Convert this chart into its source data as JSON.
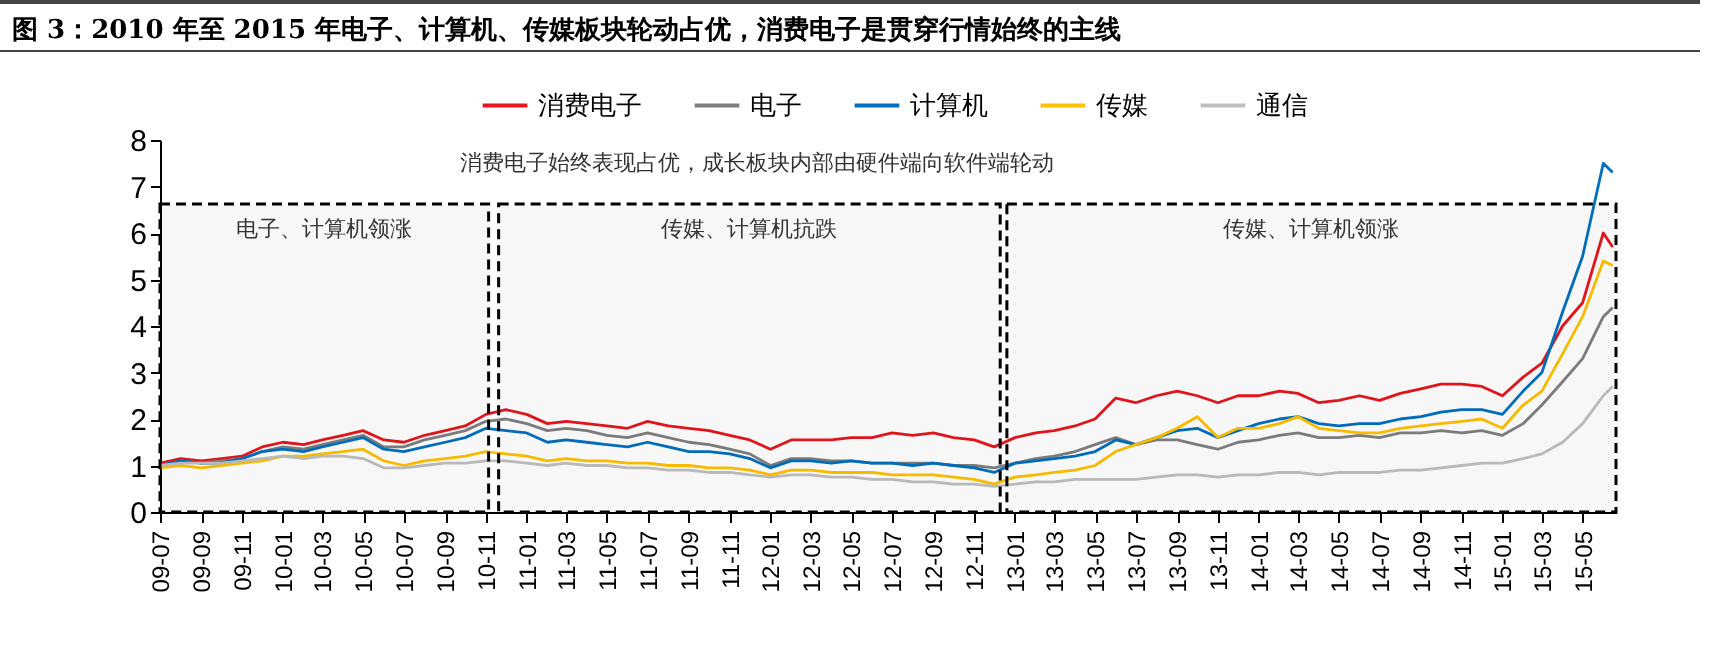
{
  "chart_data": {
    "type": "line",
    "title": "图 3：2010 年至 2015 年电子、计算机、传媒板块轮动占优，消费电子是贯穿行情始终的主线",
    "annotations": [
      "消费电子始终表现占优，成长板块内部由硬件端向软件端轮动"
    ],
    "x": [
      "2009-07",
      "2009-08",
      "2009-09",
      "2009-10",
      "2009-11",
      "2009-12",
      "2010-01",
      "2010-02",
      "2010-03",
      "2010-04",
      "2010-05",
      "2010-06",
      "2010-07",
      "2010-08",
      "2010-09",
      "2010-10",
      "2010-11",
      "2010-12",
      "2011-01",
      "2011-02",
      "2011-03",
      "2011-04",
      "2011-05",
      "2011-06",
      "2011-07",
      "2011-08",
      "2011-09",
      "2011-10",
      "2011-11",
      "2011-12",
      "2012-01",
      "2012-02",
      "2012-03",
      "2012-04",
      "2012-05",
      "2012-06",
      "2012-07",
      "2012-08",
      "2012-09",
      "2012-10",
      "2012-11",
      "2012-12",
      "2013-01",
      "2013-02",
      "2013-03",
      "2013-04",
      "2013-05",
      "2013-06",
      "2013-07",
      "2013-08",
      "2013-09",
      "2013-10",
      "2013-11",
      "2013-12",
      "2014-01",
      "2014-02",
      "2014-03",
      "2014-04",
      "2014-05",
      "2014-06",
      "2014-07",
      "2014-08",
      "2014-09",
      "2014-10",
      "2014-11",
      "2014-12",
      "2015-01",
      "2015-02",
      "2015-03",
      "2015-04",
      "2015-05",
      "2015-06",
      "2015-06-15"
    ],
    "series": [
      {
        "name": "消费电子",
        "color": "#e8161d",
        "values": [
          1.05,
          1.15,
          1.1,
          1.15,
          1.2,
          1.4,
          1.5,
          1.45,
          1.55,
          1.65,
          1.75,
          1.55,
          1.5,
          1.65,
          1.75,
          1.85,
          2.1,
          2.2,
          2.1,
          1.9,
          1.95,
          1.9,
          1.85,
          1.8,
          1.95,
          1.85,
          1.8,
          1.75,
          1.65,
          1.55,
          1.35,
          1.55,
          1.55,
          1.55,
          1.6,
          1.6,
          1.7,
          1.65,
          1.7,
          1.6,
          1.55,
          1.4,
          1.6,
          1.7,
          1.75,
          1.85,
          2.0,
          2.45,
          2.35,
          2.5,
          2.6,
          2.5,
          2.35,
          2.5,
          2.5,
          2.6,
          2.55,
          2.35,
          2.4,
          2.5,
          2.4,
          2.55,
          2.65,
          2.75,
          2.75,
          2.7,
          2.5,
          2.9,
          3.2,
          4.0,
          4.5,
          6.0,
          5.7
        ]
      },
      {
        "name": "电子",
        "color": "#7f7f7f",
        "values": [
          1.0,
          1.1,
          1.05,
          1.1,
          1.15,
          1.3,
          1.4,
          1.35,
          1.45,
          1.55,
          1.65,
          1.4,
          1.4,
          1.55,
          1.65,
          1.75,
          1.95,
          2.0,
          1.9,
          1.75,
          1.8,
          1.75,
          1.65,
          1.6,
          1.7,
          1.6,
          1.5,
          1.45,
          1.35,
          1.25,
          1.0,
          1.15,
          1.15,
          1.1,
          1.1,
          1.05,
          1.05,
          1.05,
          1.05,
          1.0,
          1.0,
          0.95,
          1.05,
          1.15,
          1.2,
          1.3,
          1.45,
          1.6,
          1.45,
          1.55,
          1.55,
          1.45,
          1.35,
          1.5,
          1.55,
          1.65,
          1.7,
          1.6,
          1.6,
          1.65,
          1.6,
          1.7,
          1.7,
          1.75,
          1.7,
          1.75,
          1.65,
          1.9,
          2.3,
          2.8,
          3.3,
          4.2,
          4.4
        ]
      },
      {
        "name": "计算机",
        "color": "#0070c0",
        "values": [
          1.0,
          1.1,
          1.05,
          1.05,
          1.15,
          1.3,
          1.35,
          1.3,
          1.4,
          1.5,
          1.6,
          1.35,
          1.3,
          1.4,
          1.5,
          1.6,
          1.8,
          1.75,
          1.7,
          1.5,
          1.55,
          1.5,
          1.45,
          1.4,
          1.5,
          1.4,
          1.3,
          1.3,
          1.25,
          1.15,
          0.95,
          1.1,
          1.1,
          1.05,
          1.1,
          1.05,
          1.05,
          1.0,
          1.05,
          1.0,
          0.95,
          0.85,
          1.05,
          1.1,
          1.15,
          1.2,
          1.3,
          1.55,
          1.45,
          1.6,
          1.75,
          1.8,
          1.6,
          1.75,
          1.9,
          2.0,
          2.05,
          1.9,
          1.85,
          1.9,
          1.9,
          2.0,
          2.05,
          2.15,
          2.2,
          2.2,
          2.1,
          2.6,
          3.0,
          4.3,
          5.5,
          7.5,
          7.3
        ]
      },
      {
        "name": "传媒",
        "color": "#ffc000",
        "values": [
          0.95,
          1.0,
          0.95,
          1.0,
          1.05,
          1.1,
          1.2,
          1.2,
          1.25,
          1.3,
          1.35,
          1.1,
          1.0,
          1.1,
          1.15,
          1.2,
          1.3,
          1.25,
          1.2,
          1.1,
          1.15,
          1.1,
          1.1,
          1.05,
          1.05,
          1.0,
          1.0,
          0.95,
          0.95,
          0.9,
          0.8,
          0.9,
          0.9,
          0.85,
          0.85,
          0.85,
          0.8,
          0.8,
          0.8,
          0.75,
          0.7,
          0.6,
          0.75,
          0.8,
          0.85,
          0.9,
          1.0,
          1.3,
          1.45,
          1.6,
          1.8,
          2.05,
          1.6,
          1.8,
          1.8,
          1.9,
          2.05,
          1.8,
          1.75,
          1.7,
          1.7,
          1.8,
          1.85,
          1.9,
          1.95,
          2.0,
          1.8,
          2.3,
          2.6,
          3.4,
          4.2,
          5.4,
          5.3
        ]
      },
      {
        "name": "通信",
        "color": "#bfbfbf",
        "values": [
          1.0,
          1.05,
          1.05,
          1.05,
          1.1,
          1.15,
          1.2,
          1.15,
          1.2,
          1.2,
          1.15,
          0.95,
          0.95,
          1.0,
          1.05,
          1.05,
          1.1,
          1.1,
          1.05,
          1.0,
          1.05,
          1.0,
          1.0,
          0.95,
          0.95,
          0.9,
          0.9,
          0.85,
          0.85,
          0.8,
          0.75,
          0.8,
          0.8,
          0.75,
          0.75,
          0.7,
          0.7,
          0.65,
          0.65,
          0.6,
          0.6,
          0.55,
          0.6,
          0.65,
          0.65,
          0.7,
          0.7,
          0.7,
          0.7,
          0.75,
          0.8,
          0.8,
          0.75,
          0.8,
          0.8,
          0.85,
          0.85,
          0.8,
          0.85,
          0.85,
          0.85,
          0.9,
          0.9,
          0.95,
          1.0,
          1.05,
          1.05,
          1.15,
          1.25,
          1.5,
          1.9,
          2.5,
          2.7
        ]
      }
    ],
    "xlim": [
      "2009-07-01",
      "2015-06-20"
    ],
    "xticks": [
      {
        "value": "2009-07",
        "label": "09-07"
      },
      {
        "value": "2009-09",
        "label": "09-09"
      },
      {
        "value": "2009-11",
        "label": "09-11"
      },
      {
        "value": "2010-01",
        "label": "10-01"
      },
      {
        "value": "2010-03",
        "label": "10-03"
      },
      {
        "value": "2010-05",
        "label": "10-05"
      },
      {
        "value": "2010-07",
        "label": "10-07"
      },
      {
        "value": "2010-09",
        "label": "10-09"
      },
      {
        "value": "2010-11",
        "label": "10-11"
      },
      {
        "value": "2011-01",
        "label": "11-01"
      },
      {
        "value": "2011-03",
        "label": "11-03"
      },
      {
        "value": "2011-05",
        "label": "11-05"
      },
      {
        "value": "2011-07",
        "label": "11-07"
      },
      {
        "value": "2011-09",
        "label": "11-09"
      },
      {
        "value": "2011-11",
        "label": "11-11"
      },
      {
        "value": "2012-01",
        "label": "12-01"
      },
      {
        "value": "2012-03",
        "label": "12-03"
      },
      {
        "value": "2012-05",
        "label": "12-05"
      },
      {
        "value": "2012-07",
        "label": "12-07"
      },
      {
        "value": "2012-09",
        "label": "12-09"
      },
      {
        "value": "2012-11",
        "label": "12-11"
      },
      {
        "value": "2013-01",
        "label": "13-01"
      },
      {
        "value": "2013-03",
        "label": "13-03"
      },
      {
        "value": "2013-05",
        "label": "13-05"
      },
      {
        "value": "2013-07",
        "label": "13-07"
      },
      {
        "value": "2013-09",
        "label": "13-09"
      },
      {
        "value": "2013-11",
        "label": "13-11"
      },
      {
        "value": "2014-01",
        "label": "14-01"
      },
      {
        "value": "2014-03",
        "label": "14-03"
      },
      {
        "value": "2014-05",
        "label": "14-05"
      },
      {
        "value": "2014-07",
        "label": "14-07"
      },
      {
        "value": "2014-09",
        "label": "14-09"
      },
      {
        "value": "2014-11",
        "label": "14-11"
      },
      {
        "value": "2015-01",
        "label": "15-01"
      },
      {
        "value": "2015-03",
        "label": "15-03"
      },
      {
        "value": "2015-05",
        "label": "15-05"
      }
    ],
    "ylim": [
      0,
      8
    ],
    "yticks": [
      0,
      1,
      2,
      3,
      4,
      5,
      6,
      7,
      8
    ],
    "bands": [
      {
        "axis": "x",
        "from": "2009-07-01",
        "to": "2010-11-05",
        "label": "电子、计算机领涨",
        "color": "#000000"
      },
      {
        "axis": "x",
        "from": "2010-11-20",
        "to": "2012-12-10",
        "label": "传媒、计算机抗跌",
        "color": "#000000"
      },
      {
        "axis": "x",
        "from": "2012-12-20",
        "to": "2015-06-20",
        "label": "传媒、计算机领涨",
        "color": "#000000"
      }
    ],
    "grid": false,
    "legend": "top",
    "marker": "none",
    "line_style": "solid"
  }
}
